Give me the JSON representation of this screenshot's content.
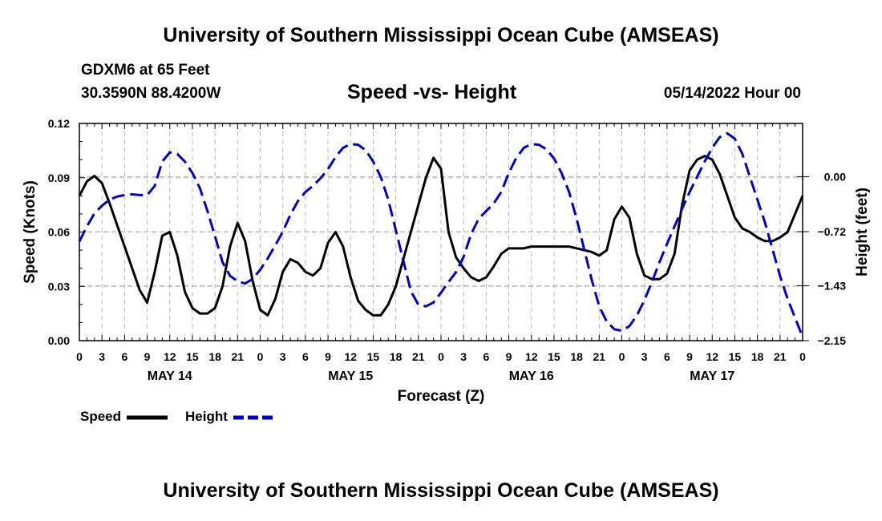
{
  "title": "University of Southern Mississippi Ocean Cube (AMSEAS)",
  "footer_title": "University of Southern Mississippi Ocean Cube (AMSEAS)",
  "station": "GDXM6 at 65 Feet",
  "location": "30.3590N  88.4200W",
  "subtitle": "Speed -vs- Height",
  "datetime": "05/14/2022 Hour 00",
  "colors": {
    "speed": "#000000",
    "height": "#0000cc",
    "grid": "#bbbbbb"
  },
  "chart_data": {
    "type": "line",
    "title": "Speed -vs- Height",
    "xlabel": "Forecast (Z)",
    "ylabel": "Speed (Knots)",
    "y2label": "Height (feet)",
    "xlim": [
      0,
      96
    ],
    "ylim": [
      0,
      0.12
    ],
    "y2lim": [
      -2.15,
      0.7
    ],
    "x_ticks": [
      0,
      3,
      6,
      9,
      12,
      15,
      18,
      21,
      24,
      27,
      30,
      33,
      36,
      39,
      42,
      45,
      48,
      51,
      54,
      57,
      60,
      63,
      66,
      69,
      72,
      75,
      78,
      81,
      84,
      87,
      90,
      93,
      96
    ],
    "x_tick_labels": [
      "0",
      "3",
      "6",
      "9",
      "12",
      "15",
      "18",
      "21",
      "0",
      "3",
      "6",
      "9",
      "12",
      "15",
      "18",
      "21",
      "0",
      "3",
      "6",
      "9",
      "12",
      "15",
      "18",
      "21",
      "0",
      "3",
      "6",
      "9",
      "12",
      "15",
      "18",
      "21",
      "0"
    ],
    "day_labels": [
      {
        "x": 12,
        "label": "MAY 14"
      },
      {
        "x": 36,
        "label": "MAY 15"
      },
      {
        "x": 60,
        "label": "MAY 16"
      },
      {
        "x": 84,
        "label": "MAY 17"
      }
    ],
    "y_ticks": [
      0,
      0.03,
      0.06,
      0.09,
      0.12
    ],
    "y_tick_labels": [
      "0.00",
      "0.03",
      "0.06",
      "0.09",
      "0.12"
    ],
    "y2_ticks": [
      0,
      -0.72,
      -1.43,
      -2.15
    ],
    "y2_tick_labels": [
      "0.00",
      "-0.72",
      "-1.43",
      "-2.15"
    ],
    "grid": true,
    "legend_position": "bottom-left",
    "series": [
      {
        "name": "Speed",
        "axis": "left",
        "style": "solid",
        "x": [
          0,
          1,
          2,
          3,
          4,
          5,
          6,
          7,
          8,
          9,
          10,
          11,
          12,
          13,
          14,
          15,
          16,
          17,
          18,
          19,
          20,
          21,
          22,
          23,
          24,
          25,
          26,
          27,
          28,
          29,
          30,
          31,
          32,
          33,
          34,
          35,
          36,
          37,
          38,
          39,
          40,
          41,
          42,
          43,
          44,
          45,
          46,
          47,
          48,
          49,
          50,
          51,
          52,
          53,
          54,
          55,
          56,
          57,
          58,
          59,
          60,
          61,
          62,
          63,
          64,
          65,
          66,
          67,
          68,
          69,
          70,
          71,
          72,
          73,
          74,
          75,
          76,
          77,
          78,
          79,
          80,
          81,
          82,
          83,
          84,
          85,
          86,
          87,
          88,
          89,
          90,
          91,
          92,
          93,
          94,
          95,
          96
        ],
        "values": [
          0.08,
          0.088,
          0.091,
          0.087,
          0.076,
          0.064,
          0.052,
          0.04,
          0.028,
          0.021,
          0.038,
          0.058,
          0.06,
          0.047,
          0.027,
          0.018,
          0.015,
          0.015,
          0.018,
          0.03,
          0.052,
          0.065,
          0.055,
          0.033,
          0.017,
          0.014,
          0.023,
          0.038,
          0.045,
          0.043,
          0.038,
          0.036,
          0.04,
          0.054,
          0.06,
          0.052,
          0.035,
          0.022,
          0.017,
          0.014,
          0.014,
          0.02,
          0.03,
          0.045,
          0.06,
          0.075,
          0.09,
          0.101,
          0.095,
          0.06,
          0.046,
          0.04,
          0.035,
          0.033,
          0.035,
          0.041,
          0.048,
          0.051,
          0.051,
          0.051,
          0.052,
          0.052,
          0.052,
          0.052,
          0.052,
          0.052,
          0.051,
          0.05,
          0.049,
          0.047,
          0.05,
          0.067,
          0.074,
          0.068,
          0.048,
          0.036,
          0.034,
          0.034,
          0.037,
          0.048,
          0.075,
          0.094,
          0.1,
          0.102,
          0.1,
          0.092,
          0.08,
          0.068,
          0.062,
          0.06,
          0.057,
          0.055,
          0.055,
          0.057,
          0.06,
          0.07,
          0.08
        ]
      },
      {
        "name": "Height",
        "axis": "right",
        "style": "dashed",
        "x": [
          0,
          1,
          2,
          3,
          4,
          5,
          6,
          7,
          8,
          9,
          10,
          11,
          12,
          13,
          14,
          15,
          16,
          17,
          18,
          19,
          20,
          21,
          22,
          23,
          24,
          25,
          26,
          27,
          28,
          29,
          30,
          31,
          32,
          33,
          34,
          35,
          36,
          37,
          38,
          39,
          40,
          41,
          42,
          43,
          44,
          45,
          46,
          47,
          48,
          49,
          50,
          51,
          52,
          53,
          54,
          55,
          56,
          57,
          58,
          59,
          60,
          61,
          62,
          63,
          64,
          65,
          66,
          67,
          68,
          69,
          70,
          71,
          72,
          73,
          74,
          75,
          76,
          77,
          78,
          79,
          80,
          81,
          82,
          83,
          84,
          85,
          86,
          87,
          88,
          89,
          90,
          91,
          92,
          93,
          94,
          95,
          96
        ],
        "values": [
          -0.85,
          -0.65,
          -0.48,
          -0.38,
          -0.3,
          -0.26,
          -0.24,
          -0.23,
          -0.24,
          -0.24,
          -0.12,
          0.2,
          0.32,
          0.3,
          0.2,
          0.05,
          -0.15,
          -0.45,
          -0.78,
          -1.12,
          -1.3,
          -1.37,
          -1.4,
          -1.34,
          -1.22,
          -1.07,
          -0.9,
          -0.72,
          -0.5,
          -0.32,
          -0.2,
          -0.12,
          -0.02,
          0.1,
          0.26,
          0.38,
          0.43,
          0.42,
          0.35,
          0.2,
          0.0,
          -0.3,
          -0.7,
          -1.1,
          -1.5,
          -1.68,
          -1.7,
          -1.65,
          -1.52,
          -1.38,
          -1.25,
          -1.05,
          -0.75,
          -0.55,
          -0.45,
          -0.35,
          -0.2,
          0.05,
          0.25,
          0.38,
          0.43,
          0.42,
          0.36,
          0.24,
          0.05,
          -0.2,
          -0.55,
          -0.95,
          -1.35,
          -1.7,
          -1.9,
          -2.0,
          -2.02,
          -1.96,
          -1.82,
          -1.62,
          -1.38,
          -1.12,
          -0.88,
          -0.65,
          -0.42,
          -0.2,
          0.0,
          0.2,
          0.38,
          0.52,
          0.57,
          0.5,
          0.3,
          0.0,
          -0.3,
          -0.6,
          -0.95,
          -1.3,
          -1.6,
          -1.85,
          -2.1
        ]
      }
    ]
  },
  "legend": {
    "speed_label": "Speed",
    "height_label": "Height"
  }
}
